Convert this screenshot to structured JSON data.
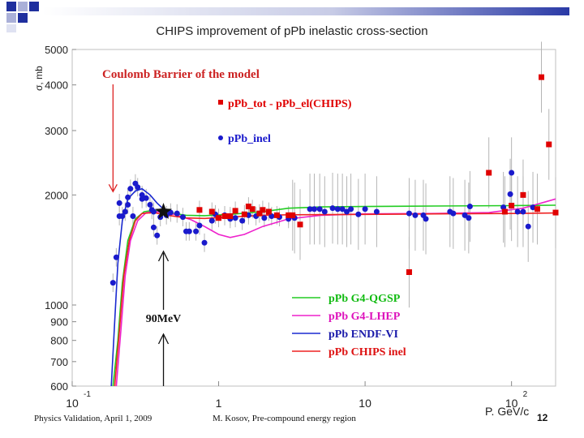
{
  "slide": {
    "title": "CHIPS improvement of pPb inelastic cross-section",
    "footer_left": "Physics Validation, April 1, 2009",
    "footer_center": "M. Kosov, Pre-compound energy region",
    "page_number": "12",
    "accent_colors": [
      "#1f2f9e",
      "#aab0d8",
      "#dfe2f2"
    ]
  },
  "chart_data": {
    "type": "scatter",
    "title": "CHIPS improvement of pPb inelastic cross-section",
    "xlabel": "P. GeV/c",
    "ylabel": "σ, mb",
    "x_scale": "log",
    "y_scale": "log",
    "xlim": [
      0.1,
      200
    ],
    "ylim": [
      600,
      5000
    ],
    "x_ticks": [
      {
        "value": 0.1,
        "base": "10",
        "exp": "-1"
      },
      {
        "value": 1,
        "base": "1",
        "exp": ""
      },
      {
        "value": 10,
        "base": "10",
        "exp": ""
      },
      {
        "value": 100,
        "base": "10",
        "exp": "2"
      }
    ],
    "y_ticks": [
      600,
      700,
      800,
      900,
      1000,
      2000,
      3000,
      4000,
      5000
    ],
    "annotations": {
      "coulomb_label": "Coulomb Barrier of the model",
      "coulomb_arrow": {
        "x": 0.19,
        "y_from": 4000,
        "y_to": 2000
      },
      "energy_label": "90MeV",
      "energy_x": 0.42,
      "energy_marker": {
        "x": 0.42,
        "y": 1800
      }
    },
    "legend_markers": [
      {
        "name": "pPb_tot - pPb_el(CHIPS)",
        "color": "#e00000",
        "marker": "square"
      },
      {
        "name": "pPb_inel",
        "color": "#1a1acc",
        "marker": "circle"
      }
    ],
    "series": [
      {
        "name": "pPb G4-QGSP",
        "kind": "line",
        "color": "#22cc22",
        "legend_color": "#11bb11",
        "points": [
          [
            0.19,
            600
          ],
          [
            0.205,
            800
          ],
          [
            0.22,
            1150
          ],
          [
            0.24,
            1500
          ],
          [
            0.27,
            1720
          ],
          [
            0.31,
            1800
          ],
          [
            0.36,
            1815
          ],
          [
            0.45,
            1790
          ],
          [
            0.6,
            1760
          ],
          [
            0.8,
            1755
          ],
          [
            1.2,
            1770
          ],
          [
            2,
            1800
          ],
          [
            3,
            1840
          ],
          [
            5,
            1855
          ],
          [
            10,
            1860
          ],
          [
            30,
            1865
          ],
          [
            100,
            1870
          ],
          [
            200,
            1875
          ]
        ]
      },
      {
        "name": "pPb G4-LHEP",
        "kind": "line",
        "color": "#ee22cc",
        "legend_color": "#dd11bb",
        "points": [
          [
            0.2,
            600
          ],
          [
            0.215,
            850
          ],
          [
            0.23,
            1200
          ],
          [
            0.25,
            1500
          ],
          [
            0.28,
            1700
          ],
          [
            0.32,
            1790
          ],
          [
            0.38,
            1800
          ],
          [
            0.5,
            1770
          ],
          [
            0.65,
            1710
          ],
          [
            0.8,
            1640
          ],
          [
            1,
            1560
          ],
          [
            1.2,
            1530
          ],
          [
            1.5,
            1560
          ],
          [
            2,
            1640
          ],
          [
            3,
            1720
          ],
          [
            5,
            1760
          ],
          [
            10,
            1775
          ],
          [
            30,
            1780
          ],
          [
            70,
            1790
          ],
          [
            120,
            1840
          ],
          [
            200,
            1950
          ]
        ]
      },
      {
        "name": "pPb ENDF-VI",
        "kind": "line",
        "color": "#1a2ad0",
        "legend_color": "#1a1aaa",
        "points": [
          [
            0.185,
            600
          ],
          [
            0.195,
            900
          ],
          [
            0.205,
            1300
          ],
          [
            0.22,
            1700
          ],
          [
            0.24,
            1950
          ],
          [
            0.27,
            2050
          ],
          [
            0.3,
            2080
          ],
          [
            0.34,
            2000
          ],
          [
            0.38,
            1900
          ],
          [
            0.42,
            1830
          ]
        ]
      },
      {
        "name": "pPb CHIPS inel",
        "kind": "line",
        "color": "#ee2222",
        "legend_color": "#dd1111",
        "points": [
          [
            0.195,
            600
          ],
          [
            0.21,
            850
          ],
          [
            0.225,
            1200
          ],
          [
            0.245,
            1500
          ],
          [
            0.27,
            1700
          ],
          [
            0.3,
            1780
          ],
          [
            0.36,
            1790
          ],
          [
            0.45,
            1760
          ],
          [
            0.6,
            1730
          ],
          [
            0.8,
            1725
          ],
          [
            1.2,
            1740
          ],
          [
            2,
            1760
          ],
          [
            3,
            1765
          ],
          [
            10,
            1770
          ],
          [
            30,
            1775
          ],
          [
            100,
            1780
          ],
          [
            200,
            1785
          ]
        ]
      },
      {
        "name": "pPb_inel",
        "kind": "points",
        "marker": "circle",
        "color": "#1a1acc",
        "points": [
          [
            0.19,
            1150
          ],
          [
            0.2,
            1350
          ],
          [
            0.21,
            1750
          ],
          [
            0.21,
            1900
          ],
          [
            0.22,
            1750
          ],
          [
            0.23,
            1800
          ],
          [
            0.24,
            1880
          ],
          [
            0.24,
            1970
          ],
          [
            0.25,
            2080
          ],
          [
            0.26,
            1750
          ],
          [
            0.27,
            2150
          ],
          [
            0.28,
            2100
          ],
          [
            0.3,
            2000
          ],
          [
            0.3,
            1950
          ],
          [
            0.32,
            1960
          ],
          [
            0.34,
            1880
          ],
          [
            0.35,
            1820
          ],
          [
            0.36,
            1800
          ],
          [
            0.36,
            1630
          ],
          [
            0.38,
            1550
          ],
          [
            0.4,
            1740
          ],
          [
            0.44,
            1760
          ],
          [
            0.47,
            1790
          ],
          [
            0.52,
            1780
          ],
          [
            0.57,
            1740
          ],
          [
            0.6,
            1590
          ],
          [
            0.63,
            1590
          ],
          [
            0.7,
            1590
          ],
          [
            0.74,
            1650
          ],
          [
            0.8,
            1480
          ],
          [
            0.9,
            1700
          ],
          [
            0.95,
            1770
          ],
          [
            1.1,
            1760
          ],
          [
            1.2,
            1720
          ],
          [
            1.3,
            1730
          ],
          [
            1.45,
            1700
          ],
          [
            1.6,
            1760
          ],
          [
            1.8,
            1750
          ],
          [
            2.05,
            1730
          ],
          [
            2.3,
            1750
          ],
          [
            2.6,
            1740
          ],
          [
            3,
            1720
          ],
          [
            3.3,
            1730
          ],
          [
            4.2,
            1830
          ],
          [
            4.5,
            1830
          ],
          [
            4.9,
            1830
          ],
          [
            5.3,
            1800
          ],
          [
            6,
            1840
          ],
          [
            6.5,
            1830
          ],
          [
            7,
            1830
          ],
          [
            7.5,
            1800
          ],
          [
            8,
            1830
          ],
          [
            9,
            1770
          ],
          [
            10,
            1830
          ],
          [
            12,
            1800
          ],
          [
            20,
            1780
          ],
          [
            22,
            1760
          ],
          [
            25,
            1760
          ],
          [
            26,
            1720
          ],
          [
            38,
            1800
          ],
          [
            40,
            1780
          ],
          [
            48,
            1760
          ],
          [
            51,
            1730
          ],
          [
            52,
            1860
          ],
          [
            88,
            1850
          ],
          [
            98,
            2010
          ],
          [
            100,
            2300
          ],
          [
            110,
            1800
          ],
          [
            120,
            1800
          ],
          [
            130,
            1640
          ],
          [
            140,
            1850
          ]
        ]
      },
      {
        "name": "pPb_tot - pPb_el(CHIPS)",
        "kind": "points",
        "marker": "square",
        "color": "#e00000",
        "points": [
          [
            0.74,
            1820
          ],
          [
            0.9,
            1800
          ],
          [
            1,
            1730
          ],
          [
            1.1,
            1750
          ],
          [
            1.2,
            1750
          ],
          [
            1.3,
            1810
          ],
          [
            1.5,
            1770
          ],
          [
            1.6,
            1860
          ],
          [
            1.7,
            1830
          ],
          [
            1.9,
            1780
          ],
          [
            2,
            1820
          ],
          [
            2.2,
            1800
          ],
          [
            2.5,
            1760
          ],
          [
            3,
            1760
          ],
          [
            3.2,
            1760
          ],
          [
            3.6,
            1660
          ],
          [
            20,
            1230
          ],
          [
            70,
            2300
          ],
          [
            90,
            1800
          ],
          [
            100,
            1870
          ],
          [
            120,
            2000
          ],
          [
            150,
            1830
          ],
          [
            160,
            4200
          ],
          [
            180,
            2750
          ],
          [
            200,
            1790
          ]
        ]
      }
    ]
  }
}
